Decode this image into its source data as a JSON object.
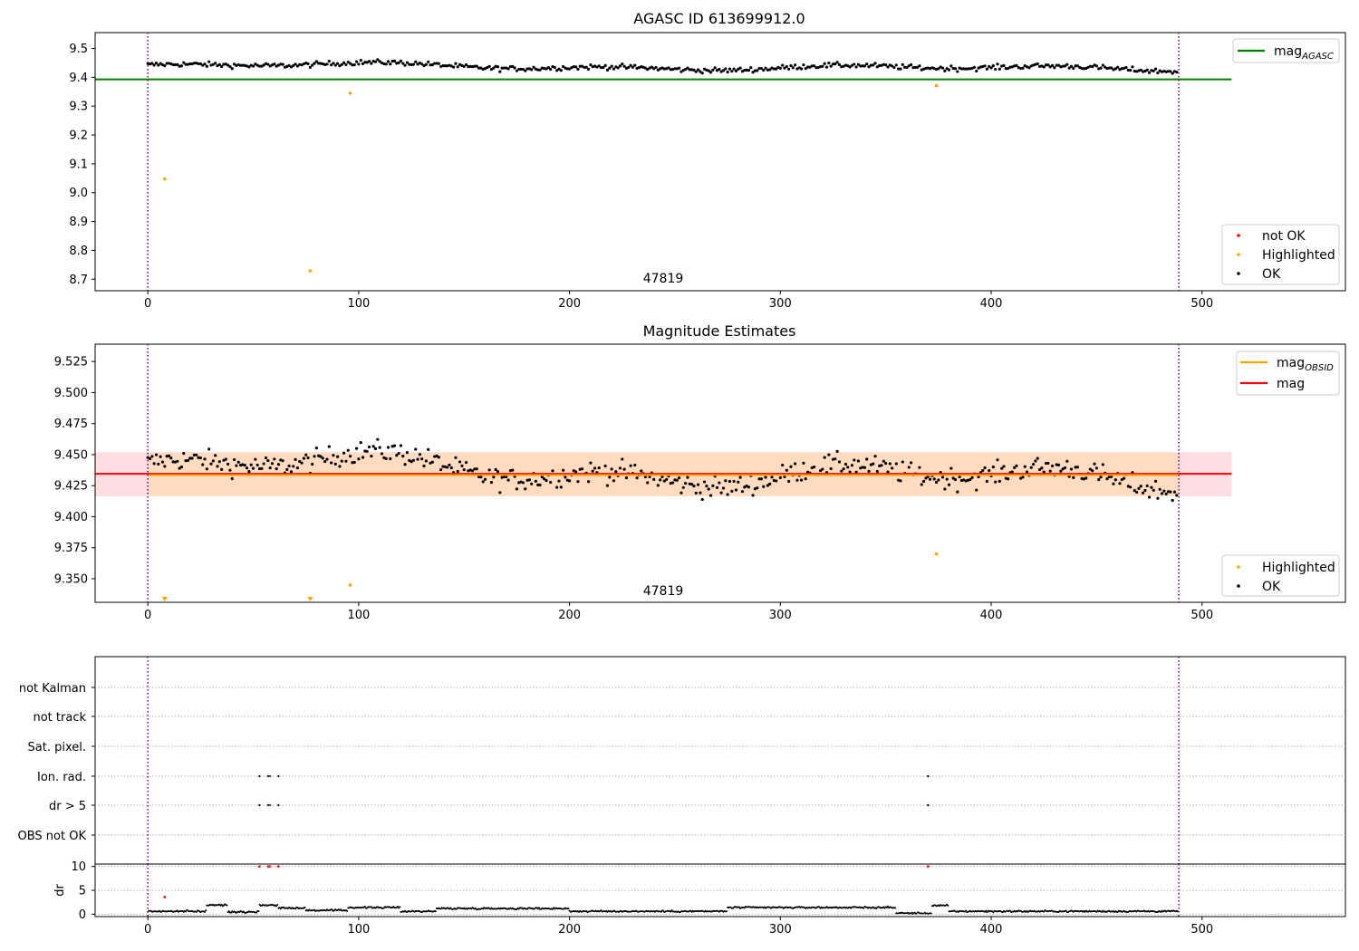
{
  "figure": {
    "top_title": "AGASC ID 613699912.0",
    "middle_title": "Magnitude Estimates",
    "obsid_label": "47819"
  },
  "colors": {
    "ok": "#000000",
    "highlighted": "#ffa500",
    "not_ok": "#ff0000",
    "mag_agasc": "#008000",
    "mag_obsid": "#ffa500",
    "mag": "#ff0000",
    "band": "#ffb6c1",
    "band_obsid": "#ffdab9",
    "obs_boundary": "#800080"
  },
  "chart_data": [
    {
      "id": "top",
      "type": "scatter",
      "title": "AGASC ID 613699912.0",
      "xlim": [
        -25,
        568
      ],
      "ylim": [
        8.66,
        9.555
      ],
      "xticks": [
        0,
        100,
        200,
        300,
        400,
        500
      ],
      "yticks": [
        8.7,
        8.8,
        8.9,
        9.0,
        9.1,
        9.2,
        9.3,
        9.4,
        9.5
      ],
      "ytick_labels": [
        "8.7",
        "8.8",
        "8.9",
        "9.0",
        "9.1",
        "9.2",
        "9.3",
        "9.4",
        "9.5"
      ],
      "obs_lines_x": [
        0,
        489
      ],
      "obs_label_x": 245,
      "mag_agasc": 9.393,
      "line_x_range": [
        -25,
        514
      ],
      "ok_model": {
        "n": 489,
        "base": 9.435,
        "amp": 0.021
      },
      "highlighted_points": [
        [
          8,
          9.048
        ],
        [
          77,
          8.729
        ],
        [
          96,
          9.345
        ],
        [
          374,
          9.371
        ]
      ],
      "legend_lines": [
        {
          "base": "mag",
          "sub": "AGASC",
          "color_key": "mag_agasc"
        }
      ],
      "legend_points": [
        {
          "label": "not OK",
          "color_key": "not_ok"
        },
        {
          "label": "Highlighted",
          "color_key": "highlighted"
        },
        {
          "label": "OK",
          "color_key": "ok"
        }
      ]
    },
    {
      "id": "middle",
      "type": "scatter",
      "title": "Magnitude Estimates",
      "xlim": [
        -25,
        568
      ],
      "ylim": [
        9.331,
        9.539
      ],
      "xticks": [
        0,
        100,
        200,
        300,
        400,
        500
      ],
      "yticks": [
        9.35,
        9.375,
        9.4,
        9.425,
        9.45,
        9.475,
        9.5,
        9.525
      ],
      "ytick_labels": [
        "9.350",
        "9.375",
        "9.400",
        "9.425",
        "9.450",
        "9.475",
        "9.500",
        "9.525"
      ],
      "obs_lines_x": [
        0,
        489
      ],
      "obs_label_x": 245,
      "mag": 9.4345,
      "mag_obsid": 9.4335,
      "band": [
        9.4165,
        9.452
      ],
      "band_obsid": [
        9.4165,
        9.4515
      ],
      "band_obsid_x": [
        0,
        489
      ],
      "line_x_range": [
        -25,
        514
      ],
      "ok_model": {
        "n": 489,
        "base": 9.435,
        "amp": 0.022
      },
      "highlighted_points": [
        [
          96,
          9.345
        ],
        [
          374,
          9.37
        ]
      ],
      "clipped_markers_x": [
        8,
        77
      ],
      "legend_lines": [
        {
          "base": "mag",
          "sub": "OBSID",
          "color_key": "mag_obsid"
        },
        {
          "base": "mag",
          "sub": "",
          "color_key": "mag"
        }
      ],
      "legend_points": [
        {
          "label": "Highlighted",
          "color_key": "highlighted"
        },
        {
          "label": "OK",
          "color_key": "ok"
        }
      ]
    },
    {
      "id": "flags",
      "type": "scatter",
      "xlim": [
        -25,
        568
      ],
      "categories": [
        "not Kalman",
        "not track",
        "Sat. pixel.",
        "Ion. rad.",
        "dr > 5",
        "OBS not OK"
      ],
      "flag_points": {
        "Ion. rad.": [
          53,
          57,
          58,
          62,
          370
        ],
        "dr > 5": [
          53,
          57,
          58,
          62,
          370
        ]
      },
      "obs_lines_x": [
        0,
        489
      ]
    },
    {
      "id": "dr",
      "type": "scatter",
      "ylabel": "dr",
      "xlim": [
        -25,
        568
      ],
      "ylim": [
        -0.5,
        10.5
      ],
      "xticks": [
        0,
        100,
        200,
        300,
        400,
        500
      ],
      "xtick_labels": [
        "0",
        "100",
        "200",
        "300",
        "400",
        "500"
      ],
      "yticks": [
        0,
        5,
        10
      ],
      "ytick_labels": [
        "0",
        "5",
        "10"
      ],
      "obs_lines_x": [
        0,
        489
      ],
      "red_points": [
        [
          8,
          3.6
        ],
        [
          53,
          10
        ],
        [
          57,
          10
        ],
        [
          58,
          10
        ],
        [
          62,
          10
        ],
        [
          370,
          10
        ]
      ],
      "segments": [
        {
          "x": [
            0,
            28
          ],
          "y": 0.6
        },
        {
          "x": [
            28,
            38
          ],
          "y": 1.9
        },
        {
          "x": [
            38,
            53
          ],
          "y": 0.5
        },
        {
          "x": [
            53,
            62
          ],
          "y": 1.9
        },
        {
          "x": [
            62,
            75
          ],
          "y": 1.3
        },
        {
          "x": [
            75,
            95
          ],
          "y": 0.8
        },
        {
          "x": [
            95,
            120
          ],
          "y": 1.4
        },
        {
          "x": [
            120,
            137
          ],
          "y": 0.6
        },
        {
          "x": [
            137,
            200
          ],
          "y": 1.2
        },
        {
          "x": [
            200,
            275
          ],
          "y": 0.6
        },
        {
          "x": [
            275,
            355
          ],
          "y": 1.4
        },
        {
          "x": [
            355,
            372
          ],
          "y": 0.2
        },
        {
          "x": [
            372,
            380
          ],
          "y": 1.8
        },
        {
          "x": [
            380,
            489
          ],
          "y": 0.6
        }
      ]
    }
  ]
}
